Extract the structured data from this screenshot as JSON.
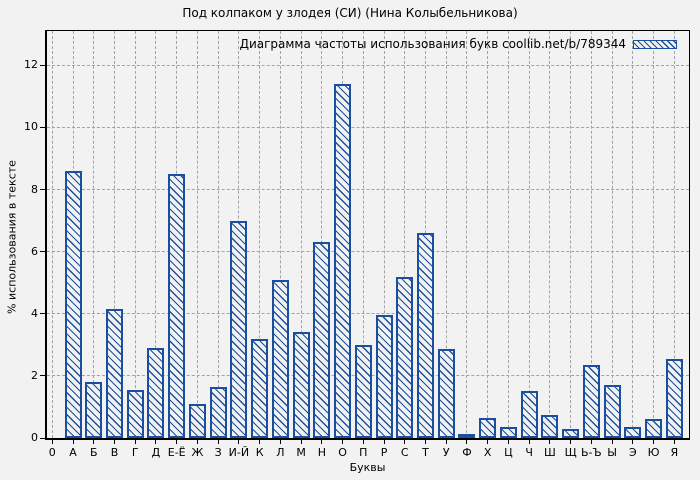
{
  "figure": {
    "background_color": "#f2f2f2",
    "grid_color": "#a3a3a3",
    "frame_color": "#000000"
  },
  "chart_data": {
    "type": "bar",
    "title": "Под колпаком у злодея (СИ) (Нина Колыбельникова)",
    "legend": "Диаграмма частоты использования букв coollib.net/b/789344",
    "legend_position": "top-right inside plot",
    "xlabel": "Буквы",
    "ylabel": "% использования в тексте",
    "ylim": [
      0,
      13
    ],
    "yticks": [
      0,
      2,
      4,
      6,
      8,
      10,
      12
    ],
    "grid": true,
    "bar_color": "#1a4f9f",
    "bar_style": "diagonal-hatch",
    "categories": [
      "0",
      "А",
      "Б",
      "В",
      "Г",
      "Д",
      "Е-Ё",
      "Ж",
      "З",
      "И-Й",
      "К",
      "Л",
      "М",
      "Н",
      "О",
      "П",
      "Р",
      "С",
      "Т",
      "У",
      "Ф",
      "Х",
      "Ц",
      "Ч",
      "Ш",
      "Щ",
      "Ь-Ъ",
      "Ы",
      "Э",
      "Ю",
      "Я"
    ],
    "values": [
      null,
      8.6,
      1.8,
      4.15,
      1.55,
      2.9,
      8.5,
      1.1,
      1.65,
      7.0,
      3.2,
      5.1,
      3.4,
      6.3,
      11.4,
      3.0,
      3.95,
      5.2,
      6.6,
      2.85,
      0.1,
      0.65,
      0.35,
      1.5,
      0.75,
      0.3,
      2.35,
      1.7,
      0.35,
      0.6,
      2.55
    ]
  }
}
